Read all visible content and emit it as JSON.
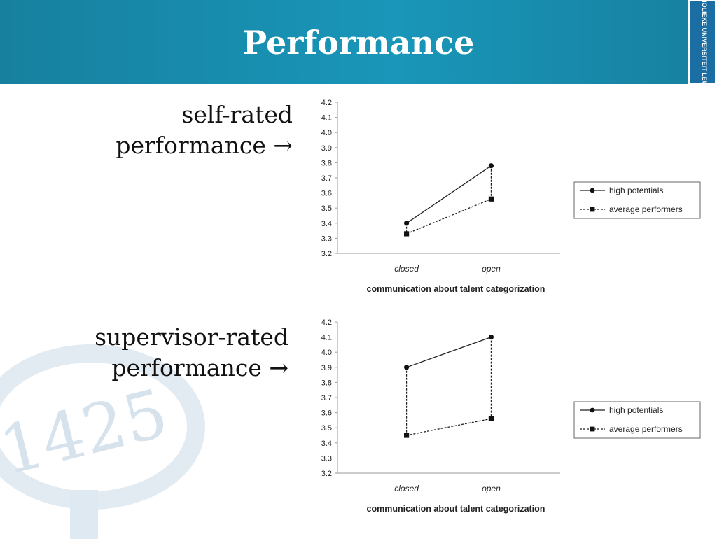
{
  "header": {
    "title": "Performance"
  },
  "logo": {
    "text": "KATHOLIEKE UNIVERSITEIT LEUVEN"
  },
  "watermark": {
    "text": "1425"
  },
  "labels": {
    "chart1_line1": "self-rated",
    "chart1_line2": "performance →",
    "chart2_line1": "supervisor-rated",
    "chart2_line2": "performance  →"
  },
  "colors": {
    "header": "#1890b3",
    "logo_bg": "#1b6ea4"
  },
  "chart_data": [
    {
      "type": "line",
      "categories": [
        "closed",
        "open"
      ],
      "xlabel": "communication about talent  categorization",
      "ylim": [
        3.2,
        4.2
      ],
      "ticks": [
        "3.2",
        "3.3",
        "3.4",
        "3.5",
        "3.6",
        "3.7",
        "3.8",
        "3.9",
        "4.0",
        "4.1",
        "4.2"
      ],
      "legend_position": "right",
      "series": [
        {
          "name": "high potentials",
          "values": [
            3.4,
            3.78
          ],
          "marker": "circle",
          "dash": "solid"
        },
        {
          "name": "average performers",
          "values": [
            3.33,
            3.56
          ],
          "marker": "square",
          "dash": "dashed"
        }
      ]
    },
    {
      "type": "line",
      "categories": [
        "closed",
        "open"
      ],
      "xlabel": "communication about talent  categorization",
      "ylim": [
        3.2,
        4.2
      ],
      "ticks": [
        "3.2",
        "3.3",
        "3.4",
        "3.5",
        "3.6",
        "3.7",
        "3.8",
        "3.9",
        "4.0",
        "4.1",
        "4.2"
      ],
      "legend_position": "right",
      "series": [
        {
          "name": "high potentials",
          "values": [
            3.9,
            4.1
          ],
          "marker": "circle",
          "dash": "solid"
        },
        {
          "name": "average performers",
          "values": [
            3.45,
            3.56
          ],
          "marker": "square",
          "dash": "dashed"
        }
      ]
    }
  ]
}
